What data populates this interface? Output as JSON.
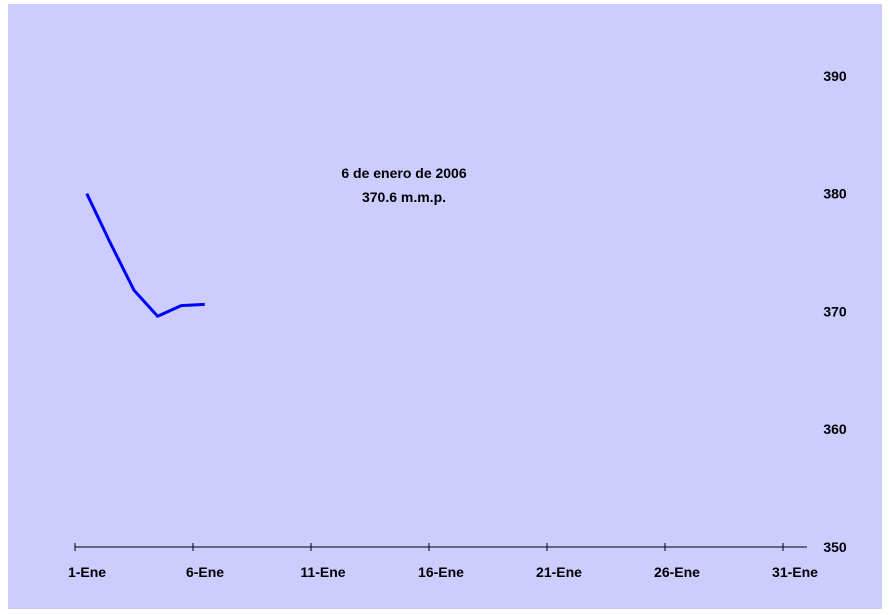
{
  "chart_data": {
    "type": "line",
    "title": "",
    "xlabel": "",
    "ylabel": "",
    "x_ticks": [
      "1-Ene",
      "6-Ene",
      "11-Ene",
      "16-Ene",
      "21-Ene",
      "26-Ene",
      "31-Ene"
    ],
    "x_tick_days": [
      1,
      6,
      11,
      16,
      21,
      26,
      31
    ],
    "xlim_days": [
      1,
      31
    ],
    "ylim": [
      350,
      395
    ],
    "y_ticks": [
      350,
      360,
      370,
      380,
      390
    ],
    "y_axis_position": "right",
    "grid": false,
    "series": [
      {
        "x_days": [
          1.5,
          2.5,
          3.5,
          4.5,
          5.5,
          6.5
        ],
        "values": [
          380.0,
          375.8,
          371.8,
          369.6,
          370.5,
          370.6
        ],
        "color": "#0000ff"
      }
    ],
    "annotation": {
      "lines": [
        "6 de enero de 2006",
        "370.6 m.m.p."
      ]
    }
  },
  "colors": {
    "background": "#ccccff",
    "line": "#0000ff",
    "axis": "#000000"
  }
}
